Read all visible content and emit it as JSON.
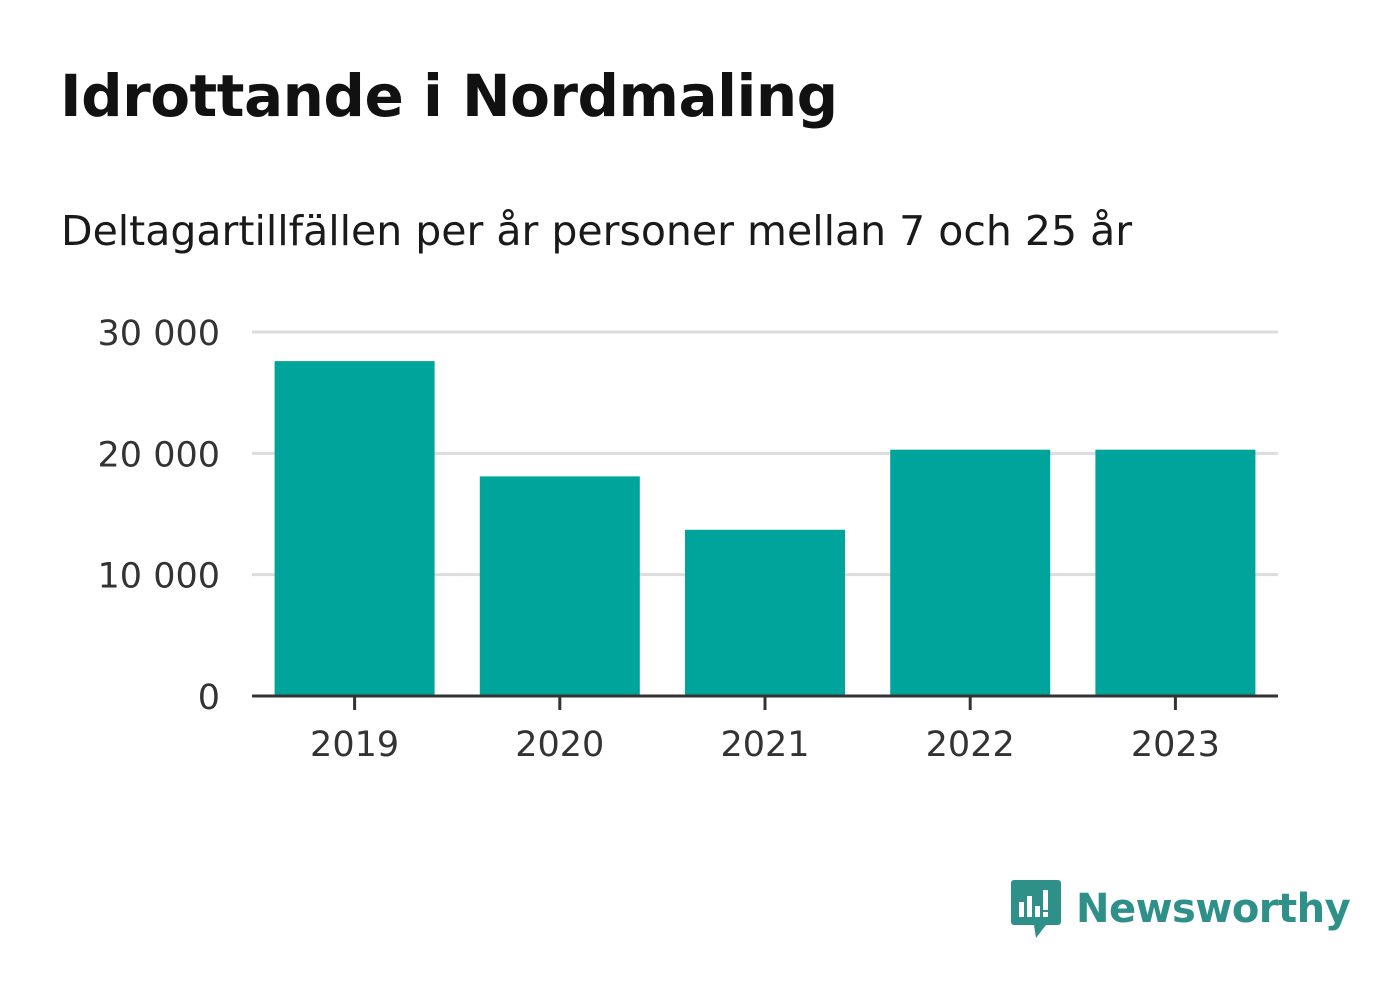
{
  "title": "Idrottande i Nordmaling",
  "subtitle": "Deltagartillfällen per år personer mellan 7 och 25 år",
  "brand": {
    "name": "Newsworthy",
    "icon": "newsworthy-logo-icon",
    "color": "#2f8f89"
  },
  "colors": {
    "bar": "#00a49a",
    "grid": "#dddddd",
    "axis": "#333333",
    "text": "#333333"
  },
  "chart_data": {
    "type": "bar",
    "categories": [
      "2019",
      "2020",
      "2021",
      "2022",
      "2023"
    ],
    "values": [
      27600,
      18100,
      13700,
      20300,
      20300
    ],
    "ylim": [
      0,
      30000
    ],
    "yticks": [
      0,
      10000,
      20000,
      30000
    ],
    "ytick_labels": [
      "0",
      "10 000",
      "20 000",
      "30 000"
    ],
    "xlabel": "",
    "ylabel": "",
    "grid": true
  }
}
